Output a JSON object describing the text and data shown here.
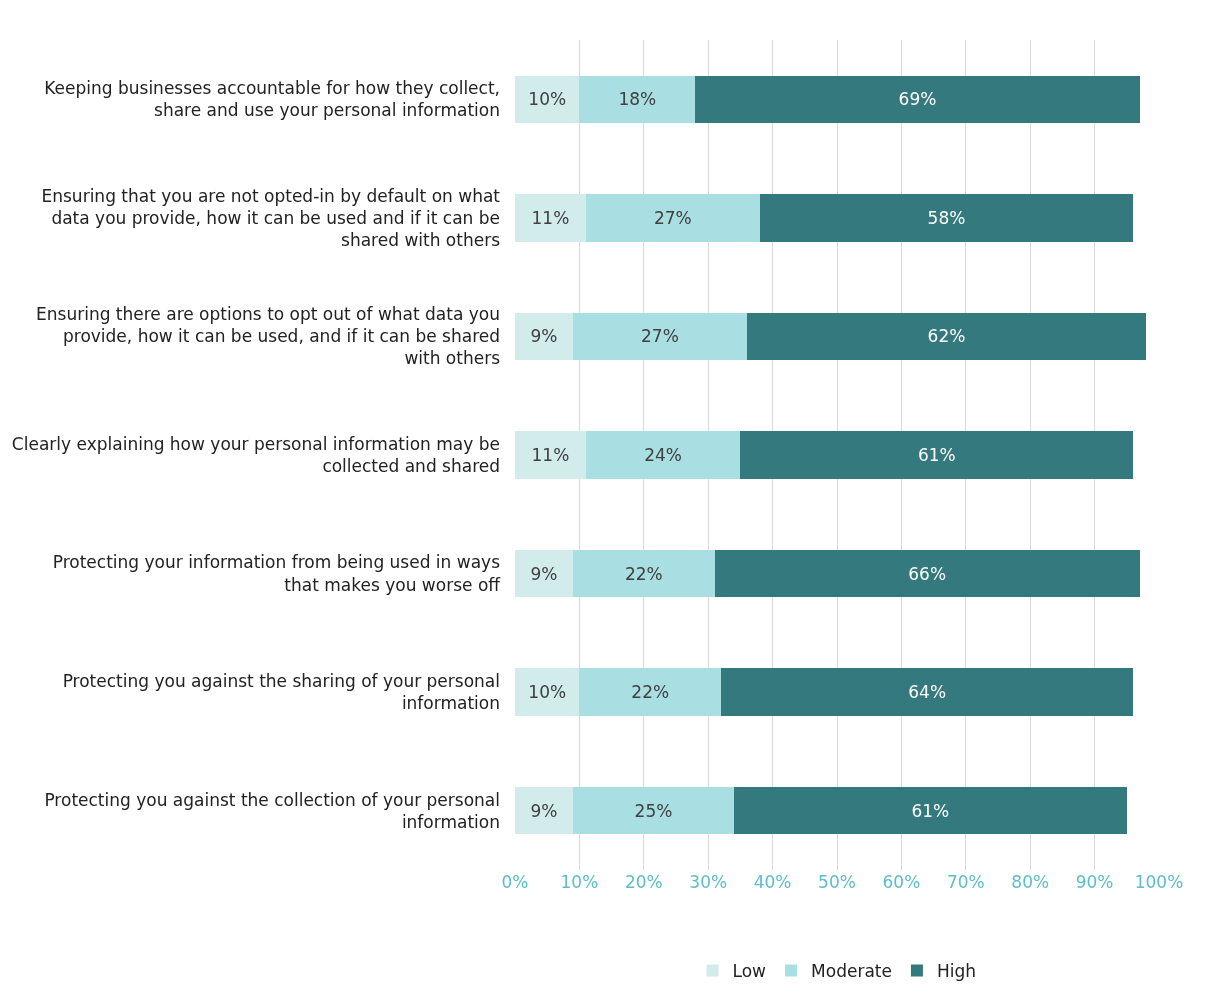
{
  "chart_data": {
    "type": "bar",
    "orientation": "horizontal",
    "stacked": true,
    "categories": [
      "Keeping businesses accountable for how they collect, share and use your personal information",
      "Ensuring that you are not opted-in by default on what data you provide, how it can be used and if it can be shared with others",
      "Ensuring there are options to opt out of what data you provide, how it can be used, and if it can be shared with others",
      "Clearly explaining how your personal information may be collected and shared",
      "Protecting your information from being used in ways that makes you worse off",
      "Protecting you against the sharing of your personal information",
      "Protecting you against the collection of your personal information"
    ],
    "series": [
      {
        "name": "Low",
        "color": "#d2ecec",
        "values": [
          10,
          11,
          9,
          11,
          9,
          10,
          9
        ],
        "value_labels": [
          "10%",
          "11%",
          "9%",
          "11%",
          "9%",
          "10%",
          "9%"
        ]
      },
      {
        "name": "Moderate",
        "color": "#a9dee3",
        "values": [
          18,
          27,
          27,
          24,
          22,
          22,
          25
        ],
        "value_labels": [
          "18%",
          "27%",
          "27%",
          "24%",
          "22%",
          "22%",
          "25%"
        ]
      },
      {
        "name": "High",
        "color": "#33797e",
        "values": [
          69,
          58,
          62,
          61,
          66,
          64,
          61
        ],
        "value_labels": [
          "69%",
          "58%",
          "62%",
          "61%",
          "66%",
          "64%",
          "61%"
        ]
      }
    ],
    "xlim": [
      0,
      100
    ],
    "xticks": [
      {
        "value": 0,
        "label": "0%"
      },
      {
        "value": 10,
        "label": "10%"
      },
      {
        "value": 20,
        "label": "20%"
      },
      {
        "value": 30,
        "label": "30%"
      },
      {
        "value": 40,
        "label": "40%"
      },
      {
        "value": 50,
        "label": "50%"
      },
      {
        "value": 60,
        "label": "60%"
      },
      {
        "value": 70,
        "label": "70%"
      },
      {
        "value": 80,
        "label": "80%"
      },
      {
        "value": 90,
        "label": "90%"
      },
      {
        "value": 100,
        "label": "100%"
      }
    ],
    "grid": "x",
    "legend": "bottom"
  }
}
